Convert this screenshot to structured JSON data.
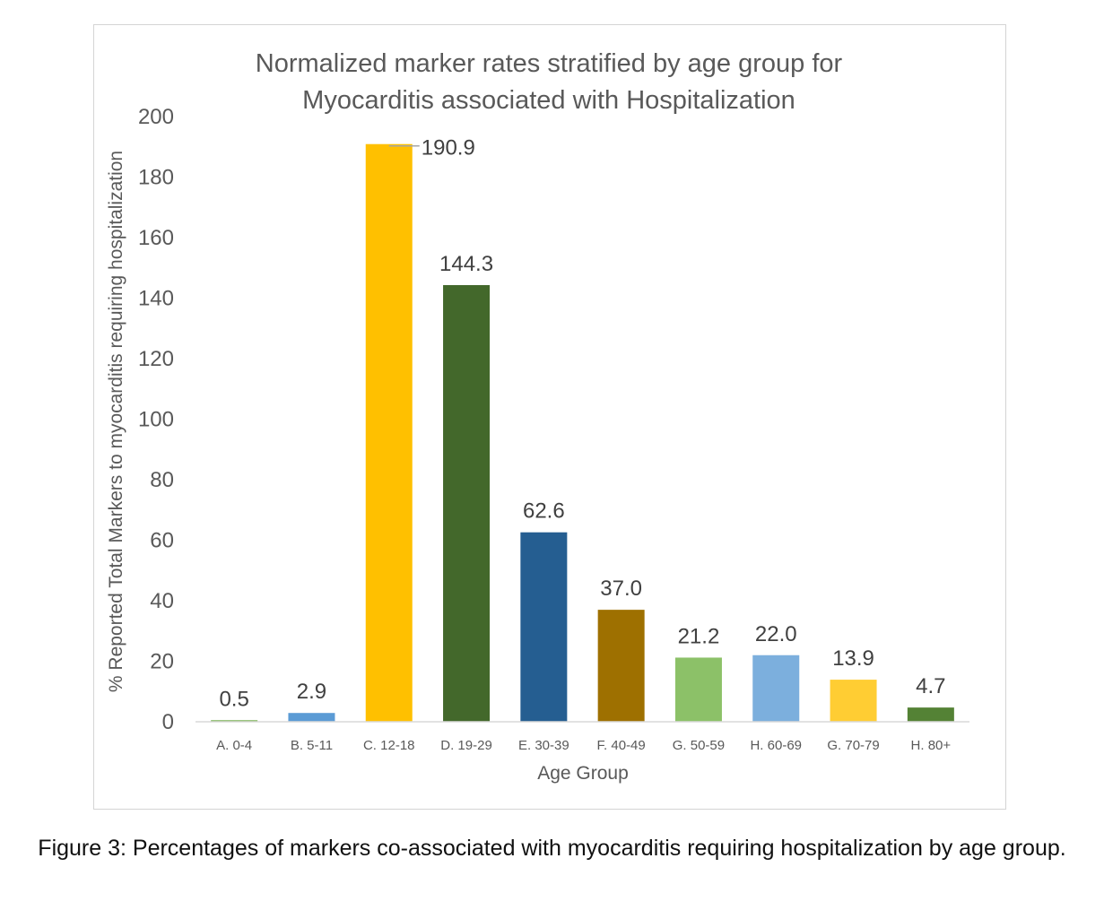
{
  "chart_data": {
    "type": "bar",
    "title_line1": "Normalized marker rates stratified by age group for",
    "title_line2": "Myocarditis associated with Hospitalization",
    "xlabel": "Age Group",
    "ylabel": "% Reported Total Markers to myocarditis requiring hospitalization",
    "ylim": [
      0,
      200
    ],
    "yticks": [
      0,
      20,
      40,
      60,
      80,
      100,
      120,
      140,
      160,
      180,
      200
    ],
    "grid": false,
    "categories": [
      "A. 0-4",
      "B. 5-11",
      "C. 12-18",
      "D. 19-29",
      "E. 30-39",
      "F. 40-49",
      "G. 50-59",
      "H. 60-69",
      "G. 70-79",
      "H. 80+"
    ],
    "values": [
      0.5,
      2.9,
      190.9,
      144.3,
      62.6,
      37.0,
      21.2,
      22.0,
      13.9,
      4.7
    ],
    "value_labels": [
      "0.5",
      "2.9",
      "190.9",
      "144.3",
      "62.6",
      "37.0",
      "21.2",
      "22.0",
      "13.9",
      "4.7"
    ],
    "colors": [
      "#70ad47",
      "#5b9bd5",
      "#ffc000",
      "#43682b",
      "#255e91",
      "#9e7000",
      "#8cc168",
      "#7cafdd",
      "#ffcd33",
      "#548235"
    ]
  },
  "caption": "Figure 3: Percentages of markers co-associated with myocarditis requiring hospitalization by age group."
}
